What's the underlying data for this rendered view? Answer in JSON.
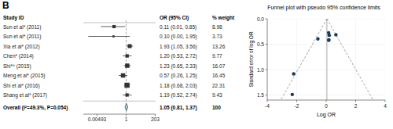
{
  "chart_data": [
    {
      "type": "forest",
      "panel_label": "B",
      "column_headers": [
        "Study ID",
        "OR (95% CI)",
        "% weight"
      ],
      "categories": [
        "Sun et al* (2011)",
        "Sun et al* (2011)",
        "Xia et al* (2012)",
        "Chen* (2014)",
        "Shi*^ (2015)",
        "Meng et al* (2015)",
        "Shi et al* (2016)",
        "Shang et al* (2017)"
      ],
      "values": [
        0.11,
        0.1,
        1.93,
        1.2,
        1.23,
        0.57,
        1.18,
        1.19
      ],
      "ci_low": [
        0.01,
        0.001,
        1.05,
        0.53,
        0.65,
        0.26,
        0.68,
        0.52
      ],
      "ci_high": [
        0.85,
        1.95,
        3.56,
        2.72,
        2.33,
        1.25,
        2.03,
        2.74
      ],
      "weight": [
        8.98,
        3.73,
        13.26,
        9.77,
        16.07,
        16.45,
        22.31,
        9.43
      ],
      "value_labels": [
        "0.11 (0.01, 0.85)",
        "0.10 (0.00, 1.95)",
        "1.93 (1.05, 3.56)",
        "1.20 (0.53, 2.72)",
        "1.23 (0.65, 2.33)",
        "0.57 (0.26, 1.25)",
        "1.18 (0.68, 2.03)",
        "1.19 (0.52, 2.74)"
      ],
      "overall_label": "Overall (I²=49.3%, P=0.054)",
      "overall_value": 1.05,
      "overall_ci_low": 0.81,
      "overall_ci_high": 1.37,
      "overall_value_label": "1.05 (0.81, 1.37)",
      "overall_weight": 100,
      "reference_line": 1,
      "log": "x",
      "xlim": [
        0.0004,
        220
      ],
      "xticks": [
        0.00493,
        1,
        203
      ],
      "color": "lightblue"
    },
    {
      "type": "scatter",
      "title": "Funnel plot with pseudo 95% confidence limits",
      "x_label": "Log OR",
      "y_label": "Standard error of log OR",
      "x": [
        -2.207,
        -2.303,
        0.658,
        0.182,
        0.207,
        -0.562,
        0.166,
        0.174
      ],
      "values": [
        1.085,
        1.49,
        0.314,
        0.413,
        0.325,
        0.396,
        0.278,
        0.424
      ],
      "reference_x": 0.0488,
      "ci_z": 1.96,
      "xlim": [
        -4,
        4
      ],
      "ylim": [
        1.6,
        0
      ],
      "xticks": [
        -4,
        -2,
        0,
        2,
        4
      ],
      "yticks": [
        {
          "value": 0,
          "label": "0.0"
        },
        {
          "value": 0.5,
          "label": "0.5"
        },
        {
          "value": 1,
          "label": "1.0"
        },
        {
          "value": 1.5,
          "label": "1.5"
        }
      ],
      "color": "#1a3a5c"
    }
  ]
}
